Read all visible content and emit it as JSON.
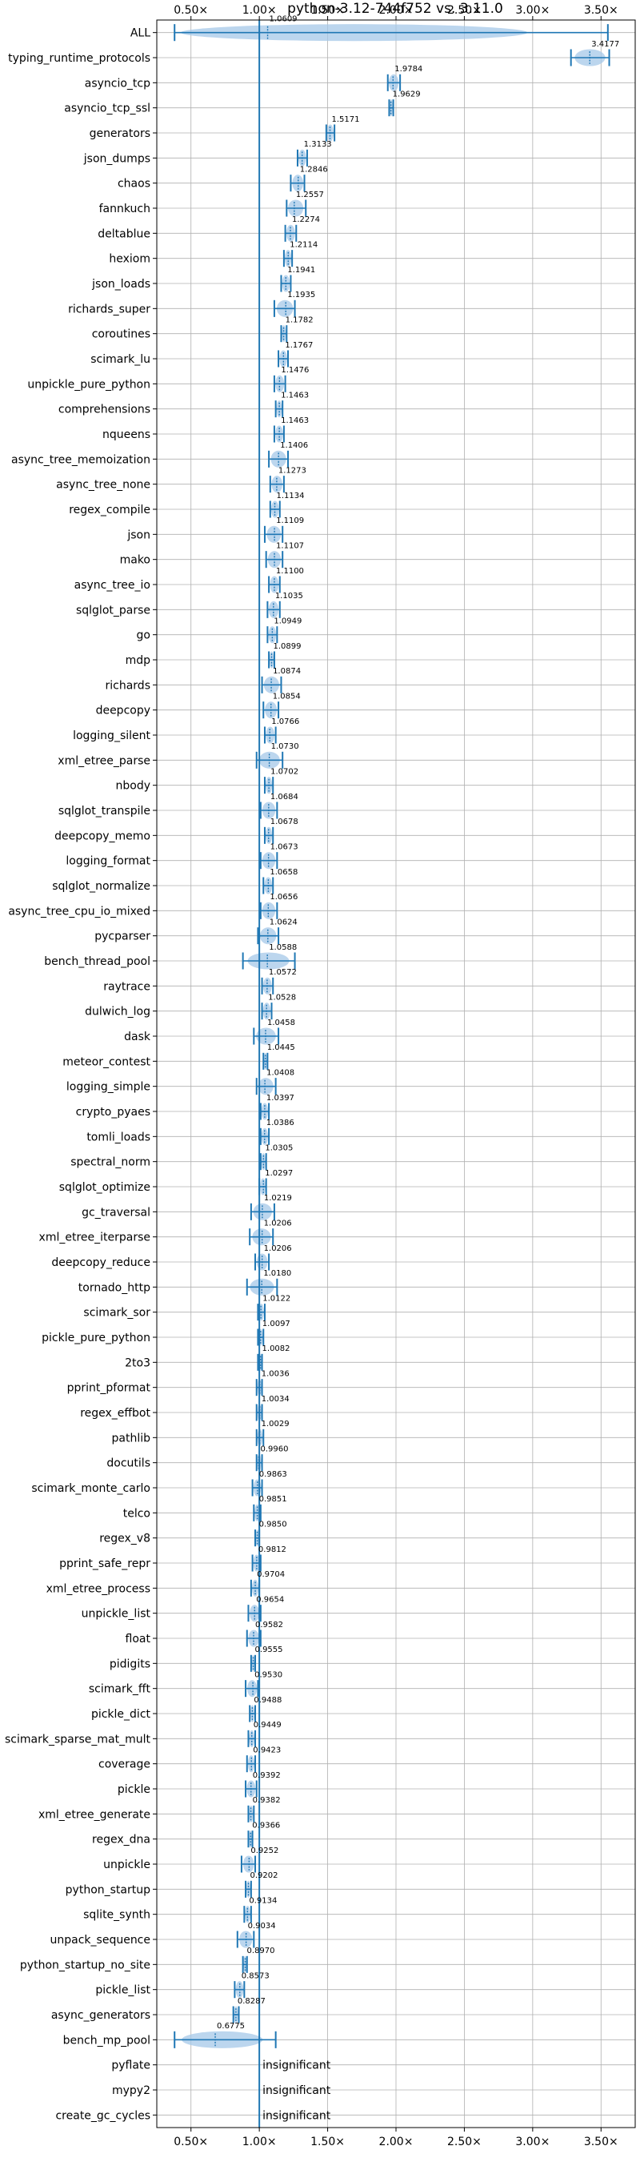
{
  "chart_data": {
    "type": "violin",
    "title": "python-3.12-744f752 vs. 3.11.0",
    "xlabel": "",
    "ylabel": "",
    "xlim": [
      0.25,
      3.75
    ],
    "xticks": [
      0.5,
      1.0,
      1.5,
      2.0,
      2.5,
      3.0,
      3.5
    ],
    "xtick_labels": [
      "0.50×",
      "1.00×",
      "1.50×",
      "2.00×",
      "2.50×",
      "3.00×",
      "3.50×"
    ],
    "xtick_labels_top": [
      "0.50×",
      "1.00×",
      "1.50×",
      "2.00×",
      "2.50×",
      "3.00×",
      "3.50×"
    ],
    "grid": true,
    "reference_line": 1.0,
    "colors": {
      "marker": "#1f77b4",
      "violin": "#a6c8e8",
      "grid": "#b0b0b0"
    },
    "insignificant_text": "insignificant",
    "categories": [
      "ALL",
      "typing_runtime_protocols",
      "asyncio_tcp",
      "asyncio_tcp_ssl",
      "generators",
      "json_dumps",
      "chaos",
      "fannkuch",
      "deltablue",
      "hexiom",
      "json_loads",
      "richards_super",
      "coroutines",
      "scimark_lu",
      "unpickle_pure_python",
      "comprehensions",
      "nqueens",
      "async_tree_memoization",
      "async_tree_none",
      "regex_compile",
      "json",
      "mako",
      "async_tree_io",
      "sqlglot_parse",
      "go",
      "mdp",
      "richards",
      "deepcopy",
      "logging_silent",
      "xml_etree_parse",
      "nbody",
      "sqlglot_transpile",
      "deepcopy_memo",
      "logging_format",
      "sqlglot_normalize",
      "async_tree_cpu_io_mixed",
      "pycparser",
      "bench_thread_pool",
      "raytrace",
      "dulwich_log",
      "dask",
      "meteor_contest",
      "logging_simple",
      "crypto_pyaes",
      "tomli_loads",
      "spectral_norm",
      "sqlglot_optimize",
      "gc_traversal",
      "xml_etree_iterparse",
      "deepcopy_reduce",
      "tornado_http",
      "scimark_sor",
      "pickle_pure_python",
      "2to3",
      "pprint_pformat",
      "regex_effbot",
      "pathlib",
      "docutils",
      "scimark_monte_carlo",
      "telco",
      "regex_v8",
      "pprint_safe_repr",
      "xml_etree_process",
      "unpickle_list",
      "float",
      "pidigits",
      "scimark_fft",
      "pickle_dict",
      "scimark_sparse_mat_mult",
      "coverage",
      "pickle",
      "xml_etree_generate",
      "regex_dna",
      "unpickle",
      "python_startup",
      "sqlite_synth",
      "unpack_sequence",
      "python_startup_no_site",
      "pickle_list",
      "async_generators",
      "bench_mp_pool",
      "pyflate",
      "mypy2",
      "create_gc_cycles"
    ],
    "values": [
      1.0609,
      3.4177,
      1.9784,
      1.9629,
      1.5171,
      1.3133,
      1.2846,
      1.2557,
      1.2274,
      1.2114,
      1.1941,
      1.1935,
      1.1782,
      1.1767,
      1.1476,
      1.1463,
      1.1463,
      1.1406,
      1.1273,
      1.1134,
      1.1109,
      1.1107,
      1.11,
      1.1035,
      1.0949,
      1.0899,
      1.0874,
      1.0854,
      1.0766,
      1.073,
      1.0702,
      1.0684,
      1.0678,
      1.0673,
      1.0658,
      1.0656,
      1.0624,
      1.0588,
      1.0572,
      1.0528,
      1.0458,
      1.0445,
      1.0408,
      1.0397,
      1.0386,
      1.0305,
      1.0297,
      1.0219,
      1.0206,
      1.0206,
      1.018,
      1.0122,
      1.0097,
      1.0082,
      1.0036,
      1.0034,
      1.0029,
      0.996,
      0.9863,
      0.9851,
      0.985,
      0.9812,
      0.9704,
      0.9654,
      0.9582,
      0.9555,
      0.953,
      0.9488,
      0.9449,
      0.9423,
      0.9392,
      0.9382,
      0.9366,
      0.9252,
      0.9202,
      0.9134,
      0.9034,
      0.897,
      0.8573,
      0.8287,
      0.6775,
      null,
      null,
      null
    ],
    "value_labels": [
      "1.0609",
      "3.4177",
      "1.9784",
      "1.9629",
      "1.5171",
      "1.3133",
      "1.2846",
      "1.2557",
      "1.2274",
      "1.2114",
      "1.1941",
      "1.1935",
      "1.1782",
      "1.1767",
      "1.1476",
      "1.1463",
      "1.1463",
      "1.1406",
      "1.1273",
      "1.1134",
      "1.1109",
      "1.1107",
      "1.1100",
      "1.1035",
      "1.0949",
      "1.0899",
      "1.0874",
      "1.0854",
      "1.0766",
      "1.0730",
      "1.0702",
      "1.0684",
      "1.0678",
      "1.0673",
      "1.0658",
      "1.0656",
      "1.0624",
      "1.0588",
      "1.0572",
      "1.0528",
      "1.0458",
      "1.0445",
      "1.0408",
      "1.0397",
      "1.0386",
      "1.0305",
      "1.0297",
      "1.0219",
      "1.0206",
      "1.0206",
      "1.0180",
      "1.0122",
      "1.0097",
      "1.0082",
      "1.0036",
      "1.0034",
      "1.0029",
      "0.9960",
      "0.9863",
      "0.9851",
      "0.9850",
      "0.9812",
      "0.9704",
      "0.9654",
      "0.9582",
      "0.9555",
      "0.9530",
      "0.9488",
      "0.9449",
      "0.9423",
      "0.9392",
      "0.9382",
      "0.9366",
      "0.9252",
      "0.9202",
      "0.9134",
      "0.9034",
      "0.8970",
      "0.8573",
      "0.8287",
      "0.6775",
      "insignificant",
      "insignificant",
      "insignificant"
    ],
    "ranges": [
      [
        0.38,
        3.55
      ],
      [
        3.28,
        3.56
      ],
      [
        1.94,
        2.03
      ],
      [
        1.95,
        1.98
      ],
      [
        1.49,
        1.55
      ],
      [
        1.28,
        1.35
      ],
      [
        1.23,
        1.33
      ],
      [
        1.2,
        1.34
      ],
      [
        1.19,
        1.27
      ],
      [
        1.18,
        1.24
      ],
      [
        1.16,
        1.23
      ],
      [
        1.11,
        1.26
      ],
      [
        1.16,
        1.2
      ],
      [
        1.14,
        1.21
      ],
      [
        1.11,
        1.19
      ],
      [
        1.12,
        1.17
      ],
      [
        1.11,
        1.18
      ],
      [
        1.07,
        1.21
      ],
      [
        1.08,
        1.18
      ],
      [
        1.08,
        1.15
      ],
      [
        1.04,
        1.17
      ],
      [
        1.05,
        1.17
      ],
      [
        1.07,
        1.15
      ],
      [
        1.06,
        1.15
      ],
      [
        1.06,
        1.13
      ],
      [
        1.07,
        1.11
      ],
      [
        1.02,
        1.16
      ],
      [
        1.03,
        1.14
      ],
      [
        1.04,
        1.12
      ],
      [
        0.98,
        1.17
      ],
      [
        1.04,
        1.1
      ],
      [
        1.01,
        1.13
      ],
      [
        1.04,
        1.1
      ],
      [
        1.01,
        1.13
      ],
      [
        1.03,
        1.1
      ],
      [
        1.01,
        1.13
      ],
      [
        0.99,
        1.14
      ],
      [
        0.88,
        1.26
      ],
      [
        1.02,
        1.1
      ],
      [
        1.02,
        1.09
      ],
      [
        0.96,
        1.14
      ],
      [
        1.03,
        1.06
      ],
      [
        0.98,
        1.12
      ],
      [
        1.01,
        1.07
      ],
      [
        1.01,
        1.07
      ],
      [
        1.01,
        1.05
      ],
      [
        1.0,
        1.05
      ],
      [
        0.94,
        1.11
      ],
      [
        0.93,
        1.1
      ],
      [
        0.97,
        1.07
      ],
      [
        0.91,
        1.13
      ],
      [
        0.99,
        1.04
      ],
      [
        0.99,
        1.03
      ],
      [
        0.99,
        1.02
      ],
      [
        0.98,
        1.02
      ],
      [
        0.98,
        1.02
      ],
      [
        0.98,
        1.03
      ],
      [
        0.98,
        1.02
      ],
      [
        0.95,
        1.02
      ],
      [
        0.96,
        1.01
      ],
      [
        0.97,
        1.0
      ],
      [
        0.95,
        1.01
      ],
      [
        0.94,
        1.0
      ],
      [
        0.92,
        1.01
      ],
      [
        0.91,
        1.01
      ],
      [
        0.94,
        0.97
      ],
      [
        0.9,
        0.99
      ],
      [
        0.93,
        0.97
      ],
      [
        0.92,
        0.97
      ],
      [
        0.91,
        0.97
      ],
      [
        0.9,
        0.98
      ],
      [
        0.92,
        0.96
      ],
      [
        0.92,
        0.95
      ],
      [
        0.87,
        0.97
      ],
      [
        0.9,
        0.94
      ],
      [
        0.89,
        0.94
      ],
      [
        0.84,
        0.96
      ],
      [
        0.88,
        0.91
      ],
      [
        0.82,
        0.89
      ],
      [
        0.81,
        0.85
      ],
      [
        0.38,
        1.12
      ],
      [
        null,
        null
      ],
      [
        null,
        null
      ],
      [
        null,
        null
      ]
    ]
  }
}
